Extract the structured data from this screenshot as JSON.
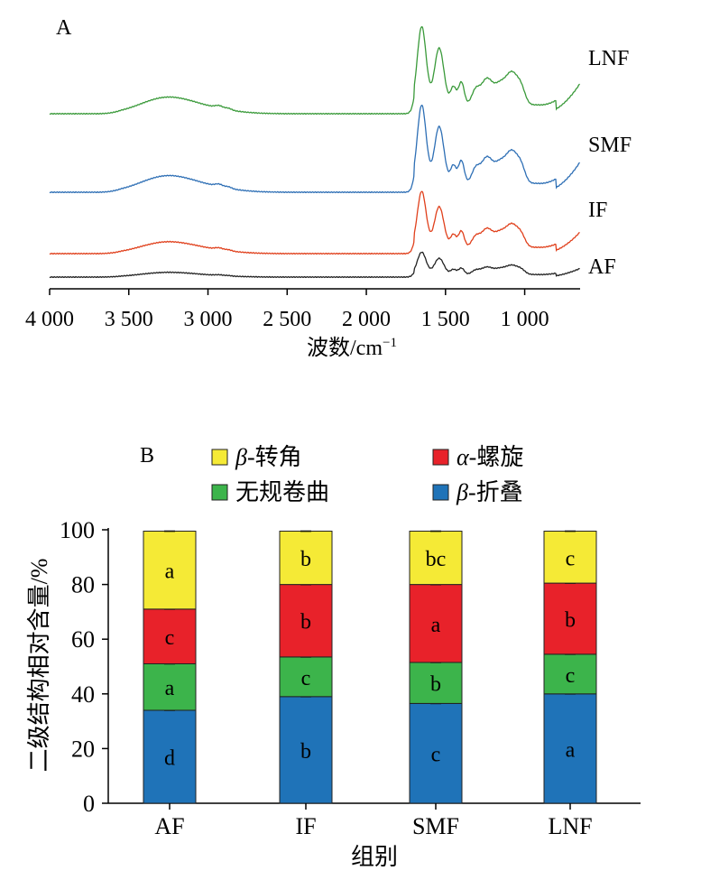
{
  "panel_a": {
    "label": "A",
    "xlabel": "波数/cm",
    "xlabel_sup": "−1",
    "x_ticks": [
      "4 000",
      "3 500",
      "3 000",
      "2 500",
      "2 000",
      "1 500",
      "1 000"
    ],
    "x_tick_values": [
      4000,
      3500,
      3000,
      2500,
      2000,
      1500,
      1000
    ],
    "xlim": [
      4000,
      650
    ],
    "series": [
      {
        "name": "LNF",
        "color": "#3a9a3a"
      },
      {
        "name": "SMF",
        "color": "#2e6fb5"
      },
      {
        "name": "IF",
        "color": "#e0401c"
      },
      {
        "name": "AF",
        "color": "#222222"
      }
    ]
  },
  "chart_data": {
    "type": "bar",
    "stacked": true,
    "title": "B",
    "xlabel": "组别",
    "ylabel": "二级结构相对含量/%",
    "ylim": [
      0,
      100
    ],
    "y_ticks": [
      "0",
      "20",
      "40",
      "60",
      "80",
      "100"
    ],
    "categories": [
      "AF",
      "IF",
      "SMF",
      "LNF"
    ],
    "series": [
      {
        "name": "β-折叠",
        "color": "#1f73b8",
        "values": [
          34,
          39,
          36.5,
          40
        ],
        "letters": [
          "d",
          "b",
          "c",
          "a"
        ]
      },
      {
        "name": "无规卷曲",
        "color": "#3cb44b",
        "values": [
          17,
          14.5,
          15,
          14.5
        ],
        "letters": [
          "a",
          "c",
          "b",
          "c"
        ]
      },
      {
        "name": "α-螺旋",
        "color": "#e8222a",
        "values": [
          20,
          26.5,
          28.5,
          26
        ],
        "letters": [
          "c",
          "b",
          "a",
          "b"
        ]
      },
      {
        "name": "β-转角",
        "color": "#f5ea36",
        "values": [
          28.5,
          19.5,
          19.5,
          19
        ],
        "letters": [
          "a",
          "b",
          "bc",
          "c"
        ]
      }
    ],
    "legend": [
      {
        "label": "β-转角",
        "color": "#f5ea36"
      },
      {
        "label": "α-螺旋",
        "color": "#e8222a"
      },
      {
        "label": "无规卷曲",
        "color": "#3cb44b"
      },
      {
        "label": "β-折叠",
        "color": "#1f73b8"
      }
    ],
    "legend_position": "top"
  }
}
